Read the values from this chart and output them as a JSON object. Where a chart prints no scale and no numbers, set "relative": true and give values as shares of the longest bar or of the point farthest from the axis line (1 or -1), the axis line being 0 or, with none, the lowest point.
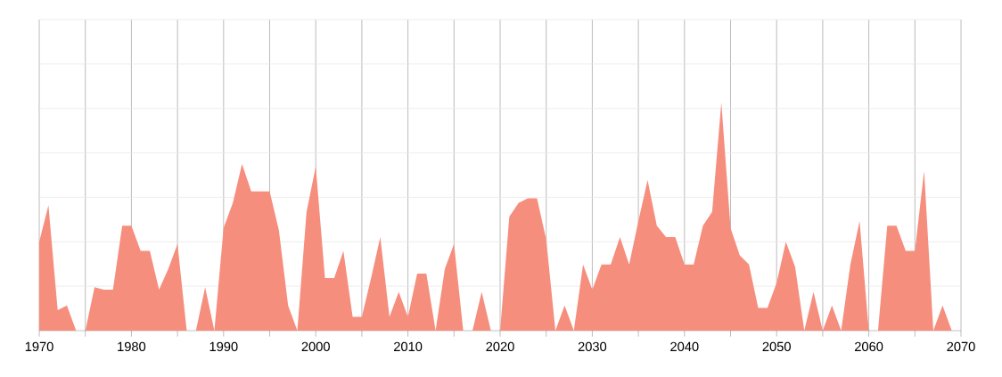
{
  "chart_data": {
    "type": "area",
    "relative": true,
    "color": "#f68e7e",
    "grid": true,
    "x": [
      1970,
      1971,
      1972,
      1973,
      1974,
      1975,
      1976,
      1977,
      1978,
      1979,
      1980,
      1981,
      1982,
      1983,
      1984,
      1985,
      1986,
      1987,
      1988,
      1989,
      1990,
      1991,
      1992,
      1993,
      1994,
      1995,
      1996,
      1997,
      1998,
      1999,
      2000,
      2001,
      2002,
      2003,
      2004,
      2005,
      2006,
      2007,
      2008,
      2009,
      2010,
      2011,
      2012,
      2013,
      2014,
      2015,
      2016,
      2017,
      2018,
      2019,
      2020,
      2021,
      2022,
      2023,
      2024,
      2025,
      2026,
      2027,
      2028,
      2029,
      2030,
      2031,
      2032,
      2033,
      2034,
      2035,
      2036,
      2037,
      2038,
      2039,
      2040,
      2041,
      2042,
      2043,
      2044,
      2045,
      2046,
      2047,
      2048,
      2049,
      2050,
      2051,
      2052,
      2053,
      2054,
      2055,
      2056,
      2057,
      2058,
      2059,
      2060,
      2061,
      2062,
      2063,
      2064,
      2065,
      2066,
      2067,
      2068,
      2069
    ],
    "values": [
      0.39,
      0.55,
      0.09,
      0.11,
      0,
      0,
      0.19,
      0.18,
      0.18,
      0.46,
      0.46,
      0.35,
      0.35,
      0.18,
      0.27,
      0.38,
      0,
      0,
      0.19,
      0,
      0.45,
      0.56,
      0.73,
      0.61,
      0.61,
      0.61,
      0.44,
      0.11,
      0,
      0.52,
      0.72,
      0.23,
      0.23,
      0.35,
      0.06,
      0.06,
      0.23,
      0.41,
      0.06,
      0.17,
      0.06,
      0.25,
      0.25,
      0,
      0.27,
      0.38,
      0,
      0,
      0.17,
      0,
      0,
      0.5,
      0.56,
      0.58,
      0.58,
      0.4,
      0,
      0.11,
      0,
      0.29,
      0.18,
      0.29,
      0.29,
      0.41,
      0.29,
      0.48,
      0.66,
      0.46,
      0.41,
      0.41,
      0.29,
      0.29,
      0.46,
      0.52,
      1,
      0.45,
      0.33,
      0.29,
      0.1,
      0.1,
      0.21,
      0.39,
      0.28,
      0,
      0.17,
      0,
      0.11,
      0,
      0.29,
      0.48,
      0,
      0,
      0.46,
      0.46,
      0.35,
      0.35,
      0.7,
      0,
      0.11,
      0
    ],
    "xlim": [
      1970,
      2070
    ],
    "xticks": [
      1970,
      {
        "value": 1975,
        "label": null
      },
      1980,
      {
        "value": 1985,
        "label": null
      },
      1990,
      {
        "value": 1995,
        "label": null
      },
      2000,
      {
        "value": 2005,
        "label": null
      },
      2010,
      {
        "value": 2015,
        "label": null
      },
      2020,
      {
        "value": 2025,
        "label": null
      },
      2030,
      {
        "value": 2035,
        "label": null
      },
      2040,
      {
        "value": 2045,
        "label": null
      },
      2050,
      {
        "value": 2055,
        "label": null
      },
      2060,
      {
        "value": 2065,
        "label": null
      },
      2070
    ]
  }
}
